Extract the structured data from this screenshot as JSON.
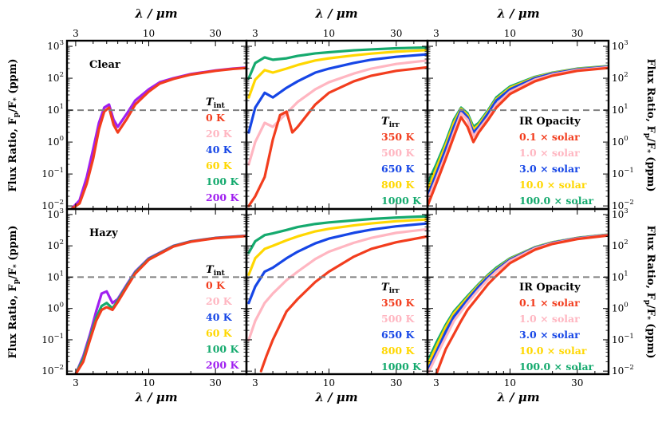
{
  "figure": {
    "x_axis_label": "λ / μm",
    "y_axis_label": "Flux Ratio, F",
    "y_axis_label_sub": "p",
    "y_axis_label_mid": "/F",
    "y_axis_label_star": "*",
    "y_axis_label_unit": " (ppm)",
    "x_tick_labels": [
      "3",
      "10",
      "30"
    ],
    "y_tick_labels": [
      {
        "base": "10",
        "exp": "−2"
      },
      {
        "base": "10",
        "exp": "−1"
      },
      {
        "base": "10",
        "exp": "0"
      },
      {
        "base": "10",
        "exp": "1"
      },
      {
        "base": "10",
        "exp": "2"
      },
      {
        "base": "10",
        "exp": "3"
      }
    ]
  },
  "chart_data": [
    {
      "type": "line",
      "panel": "top-left",
      "panel_label": "Clear",
      "xscale": "log",
      "yscale": "log",
      "xlim": [
        2.6,
        50
      ],
      "ylim": [
        0.008,
        1500
      ],
      "reference_line": 10,
      "legend": {
        "title": "T",
        "title_sub": "int",
        "entries": [
          "0 K",
          "20 K",
          "40 K",
          "60 K",
          "100 K",
          "200 K"
        ],
        "colors": [
          "#f23d1e",
          "#ffb6c1",
          "#1646e6",
          "#ffd700",
          "#15aa6e",
          "#a020f0"
        ]
      },
      "series": [
        {
          "color": "#a020f0",
          "x": [
            2.8,
            3.2,
            3.6,
            4.0,
            4.4,
            4.8,
            5.2,
            5.6,
            6.0,
            7.0,
            8.0,
            10.0,
            12.0,
            15.0,
            20.0,
            30.0,
            40.0,
            50.0
          ],
          "y": [
            0.008,
            0.015,
            0.08,
            0.6,
            4.0,
            12.0,
            15.0,
            5.0,
            3.0,
            8.0,
            20.0,
            45.0,
            75.0,
            100.0,
            135.0,
            175.0,
            200.0,
            215.0
          ]
        },
        {
          "color": "#f23d1e",
          "x": [
            2.8,
            3.2,
            3.6,
            4.0,
            4.4,
            4.8,
            5.2,
            5.6,
            6.0,
            7.0,
            8.0,
            10.0,
            12.0,
            15.0,
            20.0,
            30.0,
            40.0,
            50.0
          ],
          "y": [
            0.008,
            0.012,
            0.05,
            0.3,
            2.5,
            9.0,
            12.0,
            3.5,
            2.0,
            5.5,
            15.0,
            38.0,
            68.0,
            95.0,
            130.0,
            170.0,
            195.0,
            210.0
          ]
        }
      ]
    },
    {
      "type": "line",
      "panel": "top-middle",
      "xscale": "log",
      "yscale": "log",
      "xlim": [
        2.6,
        50
      ],
      "ylim": [
        0.008,
        1500
      ],
      "reference_line": 10,
      "legend": {
        "title": "T",
        "title_sub": "irr",
        "entries": [
          "350 K",
          "500 K",
          "650 K",
          "800 K",
          "1000 K"
        ],
        "colors": [
          "#f23d1e",
          "#ffb6c1",
          "#1646e6",
          "#ffd700",
          "#15aa6e"
        ]
      },
      "series": [
        {
          "color": "#15aa6e",
          "x": [
            2.7,
            3.0,
            3.5,
            4.0,
            5.0,
            6.0,
            8.0,
            10.0,
            15.0,
            20.0,
            30.0,
            50.0
          ],
          "y": [
            100.0,
            300.0,
            450.0,
            380.0,
            420.0,
            500.0,
            600.0,
            650.0,
            750.0,
            800.0,
            870.0,
            920.0
          ]
        },
        {
          "color": "#ffd700",
          "x": [
            2.7,
            3.0,
            3.5,
            4.0,
            5.0,
            6.0,
            8.0,
            10.0,
            15.0,
            20.0,
            30.0,
            50.0
          ],
          "y": [
            25.0,
            90.0,
            180.0,
            150.0,
            200.0,
            260.0,
            360.0,
            420.0,
            520.0,
            590.0,
            680.0,
            760.0
          ]
        },
        {
          "color": "#1646e6",
          "x": [
            2.7,
            3.0,
            3.5,
            4.0,
            5.0,
            6.0,
            8.0,
            10.0,
            15.0,
            20.0,
            30.0,
            50.0
          ],
          "y": [
            2.0,
            12.0,
            35.0,
            25.0,
            50.0,
            80.0,
            150.0,
            200.0,
            300.0,
            380.0,
            470.0,
            560.0
          ]
        },
        {
          "color": "#ffb6c1",
          "x": [
            2.7,
            3.0,
            3.5,
            4.0,
            5.0,
            6.0,
            8.0,
            10.0,
            15.0,
            20.0,
            30.0,
            50.0
          ],
          "y": [
            0.2,
            1.0,
            4.0,
            3.0,
            8.0,
            18.0,
            45.0,
            75.0,
            140.0,
            200.0,
            280.0,
            360.0
          ]
        },
        {
          "color": "#f23d1e",
          "x": [
            2.7,
            3.0,
            3.5,
            4.0,
            4.5,
            5.0,
            5.5,
            6.0,
            8.0,
            10.0,
            15.0,
            20.0,
            30.0,
            50.0
          ],
          "y": [
            0.01,
            0.02,
            0.08,
            1.2,
            7.0,
            9.0,
            2.0,
            3.0,
            15.0,
            35.0,
            80.0,
            120.0,
            170.0,
            220.0
          ]
        }
      ]
    },
    {
      "type": "line",
      "panel": "top-right",
      "xscale": "log",
      "yscale": "log",
      "xlim": [
        2.6,
        50
      ],
      "ylim": [
        0.008,
        1500
      ],
      "reference_line": 10,
      "legend": {
        "title": "IR Opacity",
        "entries": [
          "0.1 × solar",
          "1.0 × solar",
          "3.0 × solar",
          "10.0 × solar",
          "100.0 × solar"
        ],
        "colors": [
          "#f23d1e",
          "#ffb6c1",
          "#1646e6",
          "#ffd700",
          "#15aa6e"
        ]
      },
      "series": [
        {
          "color": "#15aa6e",
          "x": [
            2.6,
            3.0,
            3.5,
            4.0,
            4.5,
            5.0,
            5.5,
            6.0,
            7.0,
            8.0,
            10.0,
            15.0,
            20.0,
            30.0,
            50.0
          ],
          "y": [
            0.05,
            0.2,
            1.0,
            5.0,
            12.0,
            8.0,
            3.0,
            4.0,
            10.0,
            25.0,
            55.0,
            110.0,
            150.0,
            200.0,
            240.0
          ]
        },
        {
          "color": "#ffd700",
          "x": [
            2.6,
            3.0,
            3.5,
            4.0,
            4.5,
            5.0,
            5.5,
            6.0,
            7.0,
            8.0,
            10.0,
            15.0,
            20.0,
            30.0,
            50.0
          ],
          "y": [
            0.03,
            0.15,
            0.8,
            4.0,
            11.0,
            7.0,
            2.5,
            3.5,
            9.0,
            22.0,
            50.0,
            105.0,
            145.0,
            195.0,
            235.0
          ]
        },
        {
          "color": "#1646e6",
          "x": [
            2.6,
            3.0,
            3.5,
            4.0,
            4.5,
            5.0,
            5.5,
            6.0,
            7.0,
            8.0,
            10.0,
            15.0,
            20.0,
            30.0,
            50.0
          ],
          "y": [
            0.02,
            0.1,
            0.6,
            3.0,
            10.0,
            6.0,
            2.0,
            3.0,
            8.0,
            20.0,
            45.0,
            100.0,
            140.0,
            190.0,
            230.0
          ]
        },
        {
          "color": "#ffb6c1",
          "x": [
            2.6,
            3.0,
            3.5,
            4.0,
            4.5,
            5.0,
            5.5,
            6.0,
            7.0,
            8.0,
            10.0,
            15.0,
            20.0,
            30.0,
            50.0
          ],
          "y": [
            0.015,
            0.07,
            0.4,
            2.0,
            8.0,
            5.0,
            1.5,
            2.5,
            6.0,
            15.0,
            38.0,
            90.0,
            130.0,
            180.0,
            220.0
          ]
        },
        {
          "color": "#f23d1e",
          "x": [
            2.6,
            3.0,
            3.5,
            4.0,
            4.5,
            5.0,
            5.5,
            6.0,
            7.0,
            8.0,
            10.0,
            15.0,
            20.0,
            30.0,
            50.0
          ],
          "y": [
            0.01,
            0.05,
            0.3,
            1.5,
            6.0,
            3.0,
            1.0,
            2.0,
            5.0,
            12.0,
            32.0,
            80.0,
            120.0,
            170.0,
            210.0
          ]
        }
      ]
    },
    {
      "type": "line",
      "panel": "bottom-left",
      "panel_label": "Hazy",
      "xscale": "log",
      "yscale": "log",
      "xlim": [
        2.6,
        50
      ],
      "ylim": [
        0.008,
        1500
      ],
      "reference_line": 10,
      "legend": {
        "title": "T",
        "title_sub": "int",
        "entries": [
          "0 K",
          "20 K",
          "40 K",
          "60 K",
          "100 K",
          "200 K"
        ],
        "colors": [
          "#f23d1e",
          "#ffb6c1",
          "#1646e6",
          "#ffd700",
          "#15aa6e",
          "#a020f0"
        ]
      },
      "series": [
        {
          "color": "#a020f0",
          "x": [
            3.0,
            3.4,
            3.8,
            4.2,
            4.6,
            5.0,
            5.5,
            6.0,
            7.0,
            8.0,
            10.0,
            15.0,
            20.0,
            30.0,
            50.0
          ],
          "y": [
            0.008,
            0.03,
            0.15,
            0.8,
            3.0,
            3.5,
            1.5,
            2.0,
            6.0,
            15.0,
            40.0,
            100.0,
            140.0,
            180.0,
            210.0
          ]
        },
        {
          "color": "#15aa6e",
          "x": [
            3.0,
            3.4,
            3.8,
            4.2,
            4.6,
            5.0,
            5.5,
            6.0,
            7.0,
            8.0,
            10.0,
            15.0,
            20.0,
            30.0,
            50.0
          ],
          "y": [
            0.008,
            0.025,
            0.12,
            0.5,
            1.2,
            1.5,
            1.0,
            1.8,
            5.5,
            14.0,
            38.0,
            98.0,
            138.0,
            178.0,
            208.0
          ]
        },
        {
          "color": "#f23d1e",
          "x": [
            3.0,
            3.4,
            3.8,
            4.2,
            4.6,
            5.0,
            5.5,
            6.0,
            7.0,
            8.0,
            10.0,
            15.0,
            20.0,
            30.0,
            50.0
          ],
          "y": [
            0.008,
            0.02,
            0.1,
            0.4,
            0.9,
            1.1,
            0.9,
            1.6,
            5.0,
            13.0,
            36.0,
            95.0,
            135.0,
            175.0,
            205.0
          ]
        }
      ]
    },
    {
      "type": "line",
      "panel": "bottom-middle",
      "xscale": "log",
      "yscale": "log",
      "xlim": [
        2.6,
        50
      ],
      "ylim": [
        0.008,
        1500
      ],
      "reference_line": 10,
      "legend": {
        "title": "T",
        "title_sub": "irr",
        "entries": [
          "350 K",
          "500 K",
          "650 K",
          "800 K",
          "1000 K"
        ],
        "colors": [
          "#f23d1e",
          "#ffb6c1",
          "#1646e6",
          "#ffd700",
          "#15aa6e"
        ]
      },
      "series": [
        {
          "color": "#15aa6e",
          "x": [
            2.7,
            3.0,
            3.5,
            4.0,
            5.0,
            6.0,
            8.0,
            10.0,
            15.0,
            20.0,
            30.0,
            50.0
          ],
          "y": [
            60.0,
            140.0,
            220.0,
            250.0,
            320.0,
            400.0,
            500.0,
            560.0,
            650.0,
            720.0,
            800.0,
            880.0
          ]
        },
        {
          "color": "#ffd700",
          "x": [
            2.7,
            3.0,
            3.5,
            4.0,
            5.0,
            6.0,
            8.0,
            10.0,
            15.0,
            20.0,
            30.0,
            50.0
          ],
          "y": [
            12.0,
            40.0,
            80.0,
            100.0,
            150.0,
            200.0,
            290.0,
            350.0,
            450.0,
            520.0,
            610.0,
            700.0
          ]
        },
        {
          "color": "#1646e6",
          "x": [
            2.7,
            3.0,
            3.5,
            4.0,
            5.0,
            6.0,
            8.0,
            10.0,
            15.0,
            20.0,
            30.0,
            50.0
          ],
          "y": [
            1.5,
            5.0,
            15.0,
            20.0,
            40.0,
            65.0,
            120.0,
            170.0,
            260.0,
            330.0,
            420.0,
            520.0
          ]
        },
        {
          "color": "#ffb6c1",
          "x": [
            2.7,
            3.0,
            3.5,
            4.0,
            5.0,
            6.0,
            8.0,
            10.0,
            15.0,
            20.0,
            30.0,
            50.0
          ],
          "y": [
            0.1,
            0.4,
            1.5,
            3.0,
            8.0,
            15.0,
            38.0,
            65.0,
            125.0,
            180.0,
            260.0,
            340.0
          ]
        },
        {
          "color": "#f23d1e",
          "x": [
            3.3,
            3.6,
            4.0,
            4.5,
            5.0,
            6.0,
            8.0,
            10.0,
            15.0,
            20.0,
            30.0,
            50.0
          ],
          "y": [
            0.01,
            0.03,
            0.1,
            0.3,
            0.8,
            2.0,
            7.0,
            15.0,
            45.0,
            80.0,
            130.0,
            200.0
          ]
        }
      ]
    },
    {
      "type": "line",
      "panel": "bottom-right",
      "xscale": "log",
      "yscale": "log",
      "xlim": [
        2.6,
        50
      ],
      "ylim": [
        0.008,
        1500
      ],
      "reference_line": 10,
      "legend": {
        "title": "IR Opacity",
        "entries": [
          "0.1 × solar",
          "1.0 × solar",
          "3.0 × solar",
          "10.0 × solar",
          "100.0 × solar"
        ],
        "colors": [
          "#f23d1e",
          "#ffb6c1",
          "#1646e6",
          "#ffd700",
          "#15aa6e"
        ]
      },
      "series": [
        {
          "color": "#15aa6e",
          "x": [
            2.6,
            3.0,
            3.5,
            4.0,
            5.0,
            6.0,
            7.0,
            8.0,
            10.0,
            15.0,
            20.0,
            30.0,
            50.0
          ],
          "y": [
            0.02,
            0.08,
            0.3,
            0.8,
            2.5,
            6.0,
            12.0,
            20.0,
            40.0,
            90.0,
            130.0,
            180.0,
            230.0
          ]
        },
        {
          "color": "#ffd700",
          "x": [
            2.6,
            3.0,
            3.5,
            4.0,
            5.0,
            6.0,
            7.0,
            8.0,
            10.0,
            15.0,
            20.0,
            30.0,
            50.0
          ],
          "y": [
            0.015,
            0.06,
            0.25,
            0.7,
            2.2,
            5.5,
            11.0,
            18.0,
            38.0,
            88.0,
            128.0,
            178.0,
            228.0
          ]
        },
        {
          "color": "#1646e6",
          "x": [
            2.6,
            3.0,
            3.5,
            4.0,
            5.0,
            6.0,
            7.0,
            8.0,
            10.0,
            15.0,
            20.0,
            30.0,
            50.0
          ],
          "y": [
            0.01,
            0.04,
            0.18,
            0.55,
            1.9,
            5.0,
            10.0,
            17.0,
            36.0,
            86.0,
            125.0,
            175.0,
            225.0
          ]
        },
        {
          "color": "#ffb6c1",
          "x": [
            2.6,
            3.0,
            3.5,
            4.0,
            5.0,
            6.0,
            7.0,
            8.0,
            10.0,
            15.0,
            20.0,
            30.0,
            50.0
          ],
          "y": [
            0.008,
            0.03,
            0.12,
            0.4,
            1.5,
            4.0,
            8.5,
            15.0,
            33.0,
            82.0,
            120.0,
            170.0,
            220.0
          ]
        },
        {
          "color": "#f23d1e",
          "x": [
            3.0,
            3.5,
            4.0,
            4.5,
            5.0,
            6.0,
            7.0,
            8.0,
            10.0,
            15.0,
            20.0,
            30.0,
            50.0
          ],
          "y": [
            0.008,
            0.05,
            0.15,
            0.4,
            0.9,
            2.5,
            6.0,
            11.0,
            28.0,
            75.0,
            115.0,
            165.0,
            215.0
          ]
        }
      ]
    }
  ]
}
